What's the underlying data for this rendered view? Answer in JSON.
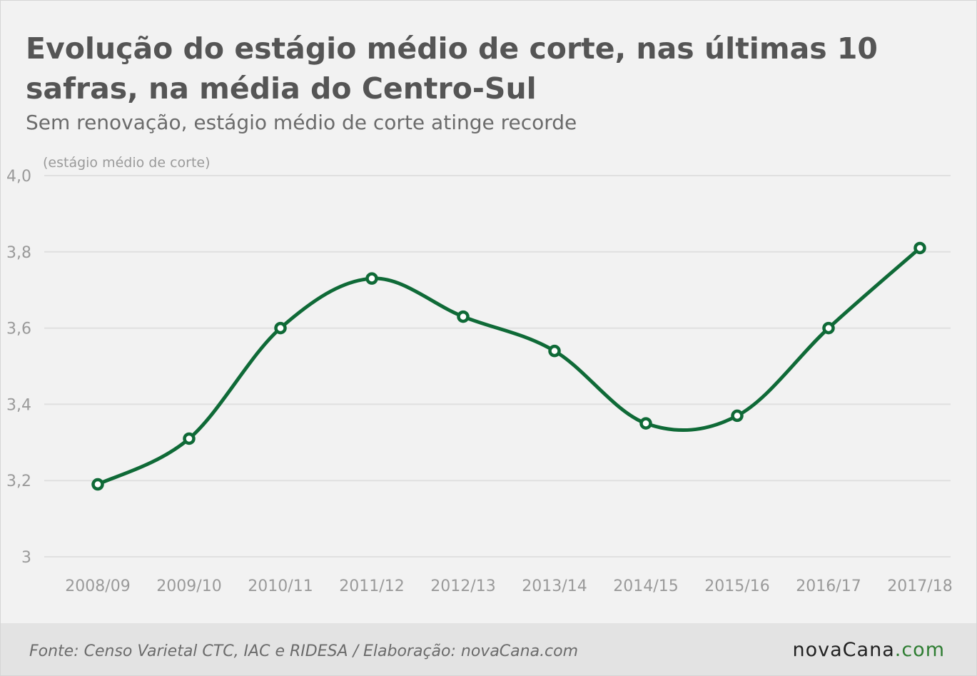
{
  "title": "Evolução do estágio médio de corte, nas últimas 10 safras, na média do Centro-Sul",
  "subtitle": "Sem renovação, estágio médio de corte atinge recorde",
  "footer": {
    "source": "Fonte: Censo Varietal CTC, IAC e RIDESA / Elaboração: novaCana.com",
    "logo_main": "novaCana",
    "logo_dotcom": ".com"
  },
  "colors": {
    "line": "#0f6a37",
    "text_title": "#555555",
    "grid": "#e0e0e0"
  },
  "chart_data": {
    "type": "line",
    "title": "Evolução do estágio médio de corte, nas últimas 10 safras, na média do Centro-Sul",
    "subtitle": "Sem renovação, estágio médio de corte atinge recorde",
    "ylabel": "(estágio médio de corte)",
    "xlabel": "",
    "ylim": [
      3,
      4
    ],
    "yticks": [
      3,
      3.2,
      3.4,
      3.6,
      3.8,
      4.0
    ],
    "ytick_labels": [
      "3",
      "3,2",
      "3,4",
      "3,6",
      "3,8",
      "4,0"
    ],
    "grid": true,
    "smooth": true,
    "categories": [
      "2008/09",
      "2009/10",
      "2010/11",
      "2011/12",
      "2012/13",
      "2013/14",
      "2014/15",
      "2015/16",
      "2016/17",
      "2017/18"
    ],
    "series": [
      {
        "values": [
          3.19,
          3.31,
          3.6,
          3.73,
          3.63,
          3.54,
          3.35,
          3.37,
          3.6,
          3.81
        ]
      }
    ]
  }
}
